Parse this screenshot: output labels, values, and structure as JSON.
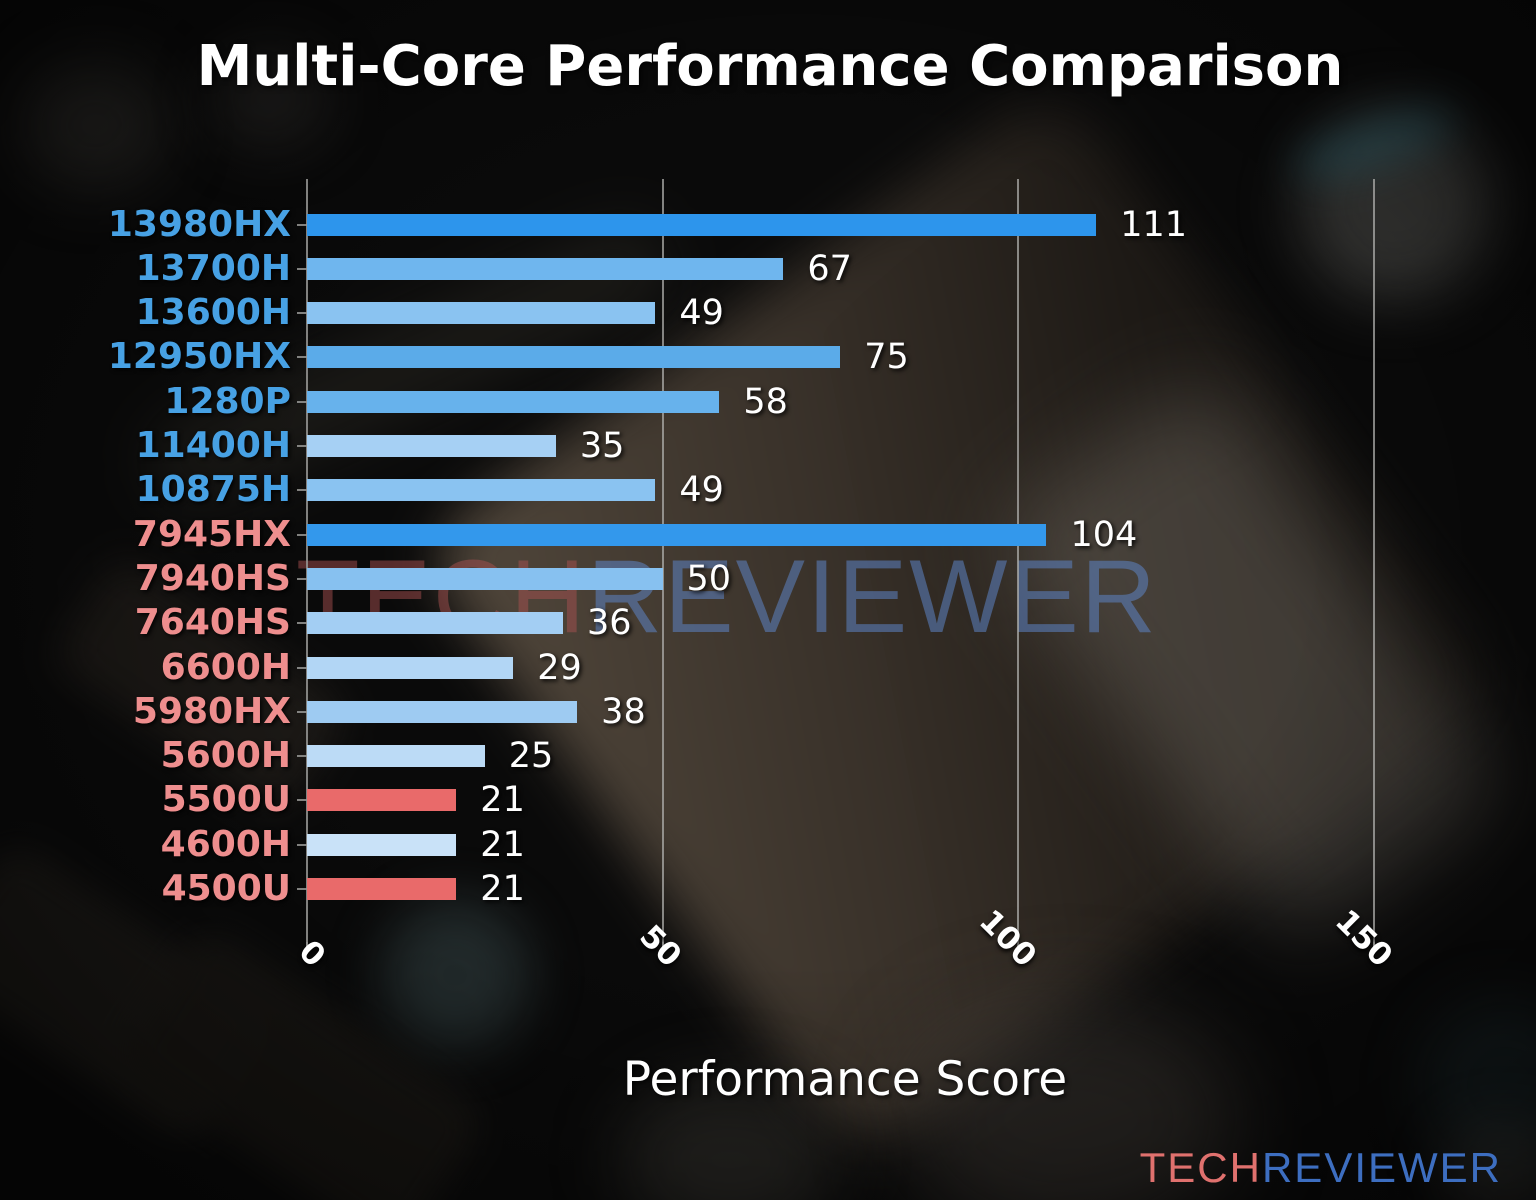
{
  "title": "Multi-Core Performance Comparison",
  "xlabel": "Performance Score",
  "watermark": {
    "part1": "TECH",
    "part2": "REVIEWER"
  },
  "logo": {
    "part1": "TECH",
    "part2": "REVIEWER"
  },
  "colors": {
    "intel_label": "#47a1e4",
    "amd_label": "#ee8e8e",
    "highlight_red_bar": "#e96a6a",
    "strong_blue_bar": "#2d95ec",
    "grid": "#b2b2ae",
    "text": "#ffffff"
  },
  "chart_data": {
    "type": "bar",
    "orientation": "horizontal",
    "title": "Multi-Core Performance Comparison",
    "xlabel": "Performance Score",
    "ylabel": "",
    "xlim": [
      0,
      162
    ],
    "xticks": [
      0,
      50,
      100,
      150
    ],
    "xtick_labels": [
      "0",
      "50",
      "100",
      "150"
    ],
    "grid": true,
    "legend": "none",
    "categories": [
      "13980HX",
      "13700H",
      "13600H",
      "12950HX",
      "1280P",
      "11400H",
      "10875H",
      "7945HX",
      "7940HS",
      "7640HS",
      "6600H",
      "5980HX",
      "5600H",
      "5500U",
      "4600H",
      "4500U"
    ],
    "values": [
      111,
      67,
      49,
      75,
      58,
      35,
      49,
      104,
      50,
      36,
      29,
      38,
      25,
      21,
      21,
      21
    ],
    "bar_colors": [
      "#2d95ec",
      "#6fb6ee",
      "#8ac3f1",
      "#5babe9",
      "#67b2ec",
      "#a6d0f4",
      "#8ac3f1",
      "#3398ec",
      "#87c1f0",
      "#a3cef3",
      "#b2d6f5",
      "#9ecbf2",
      "#bcdbf6",
      "#e96a6a",
      "#c9e2f8",
      "#e96a6a"
    ],
    "category_label_colors": [
      "#47a1e4",
      "#47a1e4",
      "#47a1e4",
      "#47a1e4",
      "#47a1e4",
      "#47a1e4",
      "#47a1e4",
      "#ee8e8e",
      "#ee8e8e",
      "#ee8e8e",
      "#ee8e8e",
      "#ee8e8e",
      "#ee8e8e",
      "#ee8e8e",
      "#ee8e8e",
      "#ee8e8e"
    ],
    "value_label_color": "#ffffff"
  }
}
